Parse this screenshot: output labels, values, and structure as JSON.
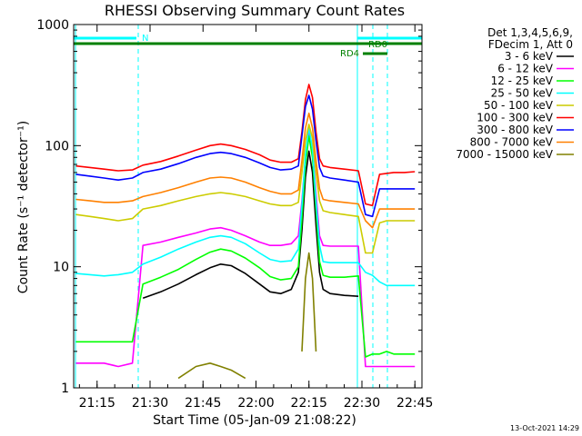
{
  "chart_data": {
    "type": "line",
    "title": "RHESSI Observing Summary Count Rates",
    "xlabel": "Start Time (05-Jan-09 21:08:22)",
    "ylabel": "Count Rate (s⁻¹ detector⁻¹)",
    "y_scale": "log",
    "ylim": [
      1,
      1000
    ],
    "xlim": [
      "21:08:22",
      "22:47:00"
    ],
    "x_ticks": [
      "21:15",
      "21:30",
      "21:45",
      "22:00",
      "22:15",
      "22:30",
      "22:45"
    ],
    "y_ticks": [
      "1",
      "10",
      "100",
      "1000"
    ],
    "legend_header": [
      "Det 1,3,4,5,6,9,",
      "FDecim 1, Att 0"
    ],
    "legend_position": "right",
    "annotations": {
      "night_label": "N",
      "rd0_label": "RD0",
      "rd4_label": "RD4"
    },
    "footer_timestamp": "13-Oct-2021 14:29",
    "x_points": [
      "21:09",
      "21:13",
      "21:17",
      "21:21",
      "21:25",
      "21:28",
      "21:33",
      "21:38",
      "21:43",
      "21:47",
      "21:50",
      "21:53",
      "21:57",
      "22:01",
      "22:04",
      "22:07",
      "22:10",
      "22:12",
      "22:13",
      "22:14",
      "22:15",
      "22:16",
      "22:17",
      "22:18",
      "22:19",
      "22:21",
      "22:25",
      "22:29",
      "22:31",
      "22:33",
      "22:35",
      "22:37",
      "22:39",
      "22:42",
      "22:45"
    ],
    "series": [
      {
        "name": "3 - 6 keV",
        "color": "#000000",
        "values": [
          null,
          null,
          null,
          null,
          null,
          5.5,
          6.2,
          7.2,
          8.6,
          9.8,
          10.5,
          10.2,
          8.8,
          7.2,
          6.2,
          6.0,
          6.5,
          9,
          20,
          55,
          90,
          60,
          22,
          9,
          6.5,
          6,
          5.8,
          5.7,
          null,
          null,
          null,
          null,
          null,
          null,
          null
        ]
      },
      {
        "name": "6 - 12 keV",
        "color": "#ff00ff",
        "values": [
          1.6,
          1.6,
          1.6,
          1.5,
          1.6,
          15,
          16,
          17.5,
          19,
          20.5,
          21,
          20,
          18,
          16,
          15,
          15,
          15.5,
          18,
          35,
          80,
          130,
          95,
          40,
          18,
          15,
          14.8,
          14.8,
          14.8,
          1.5,
          1.5,
          1.5,
          1.5,
          1.5,
          1.5,
          1.5
        ]
      },
      {
        "name": "12 - 25 keV",
        "color": "#00ff00",
        "values": [
          2.4,
          2.4,
          2.4,
          2.4,
          2.4,
          7.2,
          8.2,
          9.5,
          11.5,
          13.2,
          14,
          13.5,
          11.8,
          9.8,
          8.3,
          7.8,
          8,
          10,
          25,
          70,
          120,
          80,
          30,
          11,
          8.5,
          8.2,
          8.2,
          8.4,
          1.8,
          1.9,
          1.9,
          2,
          1.9,
          1.9,
          1.9
        ]
      },
      {
        "name": "25 - 50 keV",
        "color": "#00ffff",
        "values": [
          8.8,
          8.6,
          8.4,
          8.6,
          9,
          10.5,
          12,
          14,
          16,
          17.5,
          18,
          17.5,
          15.5,
          13,
          11.5,
          11,
          11.2,
          14,
          32,
          85,
          140,
          95,
          35,
          15,
          11,
          10.8,
          10.8,
          10.8,
          9,
          8.5,
          7.5,
          7,
          7,
          7,
          7
        ]
      },
      {
        "name": "50 - 100 keV",
        "color": "#cccc00",
        "values": [
          27,
          26,
          25,
          24,
          25,
          30,
          32,
          35,
          38,
          40,
          41,
          40,
          38,
          35,
          33,
          32,
          32,
          34,
          60,
          110,
          150,
          115,
          60,
          35,
          29,
          28,
          27,
          26,
          13,
          13,
          23,
          24,
          24,
          24,
          24
        ]
      },
      {
        "name": "100 - 300 keV",
        "color": "#ff0000",
        "values": [
          68,
          66,
          64,
          62,
          63,
          69,
          74,
          82,
          92,
          100,
          103,
          100,
          93,
          84,
          76,
          73,
          73,
          78,
          130,
          240,
          320,
          250,
          130,
          78,
          68,
          66,
          64,
          62,
          33,
          32,
          58,
          59,
          60,
          60,
          61
        ]
      },
      {
        "name": "300 - 800 keV",
        "color": "#0000ff",
        "values": [
          58,
          56,
          54,
          52,
          54,
          60,
          64,
          71,
          80,
          86,
          88,
          86,
          80,
          72,
          66,
          63,
          64,
          68,
          120,
          210,
          260,
          200,
          110,
          66,
          56,
          54,
          52,
          50,
          27,
          26,
          44,
          44,
          44,
          44,
          44
        ]
      },
      {
        "name": "800 - 7000 keV",
        "color": "#ff8000",
        "values": [
          36,
          35,
          34,
          34,
          35,
          38,
          41,
          45,
          50,
          54,
          55,
          54,
          50,
          45,
          42,
          40,
          40,
          43,
          75,
          140,
          185,
          140,
          75,
          44,
          36,
          35,
          34,
          33,
          24,
          21,
          30,
          30,
          30,
          30,
          30
        ]
      },
      {
        "name": "7000 - 15000 keV",
        "color": "#808000",
        "values": [
          null,
          null,
          null,
          null,
          null,
          null,
          null,
          1.2,
          1.5,
          1.6,
          1.5,
          1.4,
          1.2,
          null,
          null,
          null,
          null,
          null,
          2,
          8,
          13,
          8,
          2,
          null,
          null,
          null,
          null,
          null,
          null,
          null,
          null,
          null,
          null,
          null,
          null
        ]
      }
    ]
  }
}
